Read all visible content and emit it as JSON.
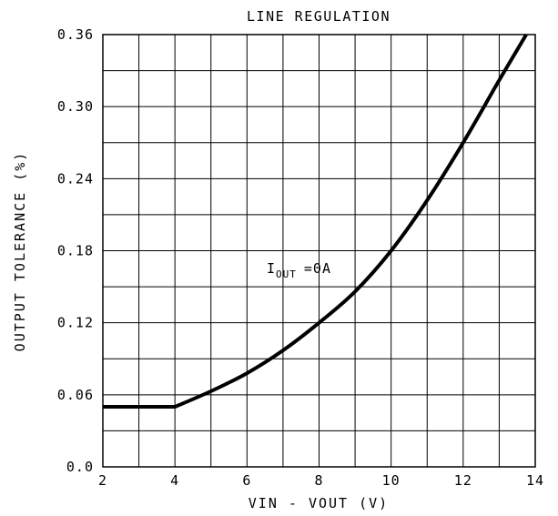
{
  "chart_data": {
    "type": "line",
    "title": "LINE REGULATION",
    "xlabel": "VIN - VOUT (V)",
    "ylabel": "OUTPUT TOLERANCE (%)",
    "xlim": [
      2,
      14
    ],
    "ylim": [
      0,
      0.36
    ],
    "x_ticks": [
      "2",
      "4",
      "6",
      "8",
      "10",
      "12",
      "14"
    ],
    "y_ticks": [
      "0.0",
      "0.06",
      "0.12",
      "0.18",
      "0.24",
      "0.30",
      "0.36"
    ],
    "grid": true,
    "annotation": {
      "main": "I",
      "subscript": "OUT",
      "suffix": "=0A"
    },
    "series": [
      {
        "x": [
          2,
          4,
          5,
          6,
          7,
          8,
          9,
          10,
          11,
          12,
          13,
          13.75
        ],
        "y": [
          0.05,
          0.05,
          0.063,
          0.078,
          0.097,
          0.12,
          0.146,
          0.18,
          0.222,
          0.27,
          0.322,
          0.36
        ]
      }
    ]
  }
}
